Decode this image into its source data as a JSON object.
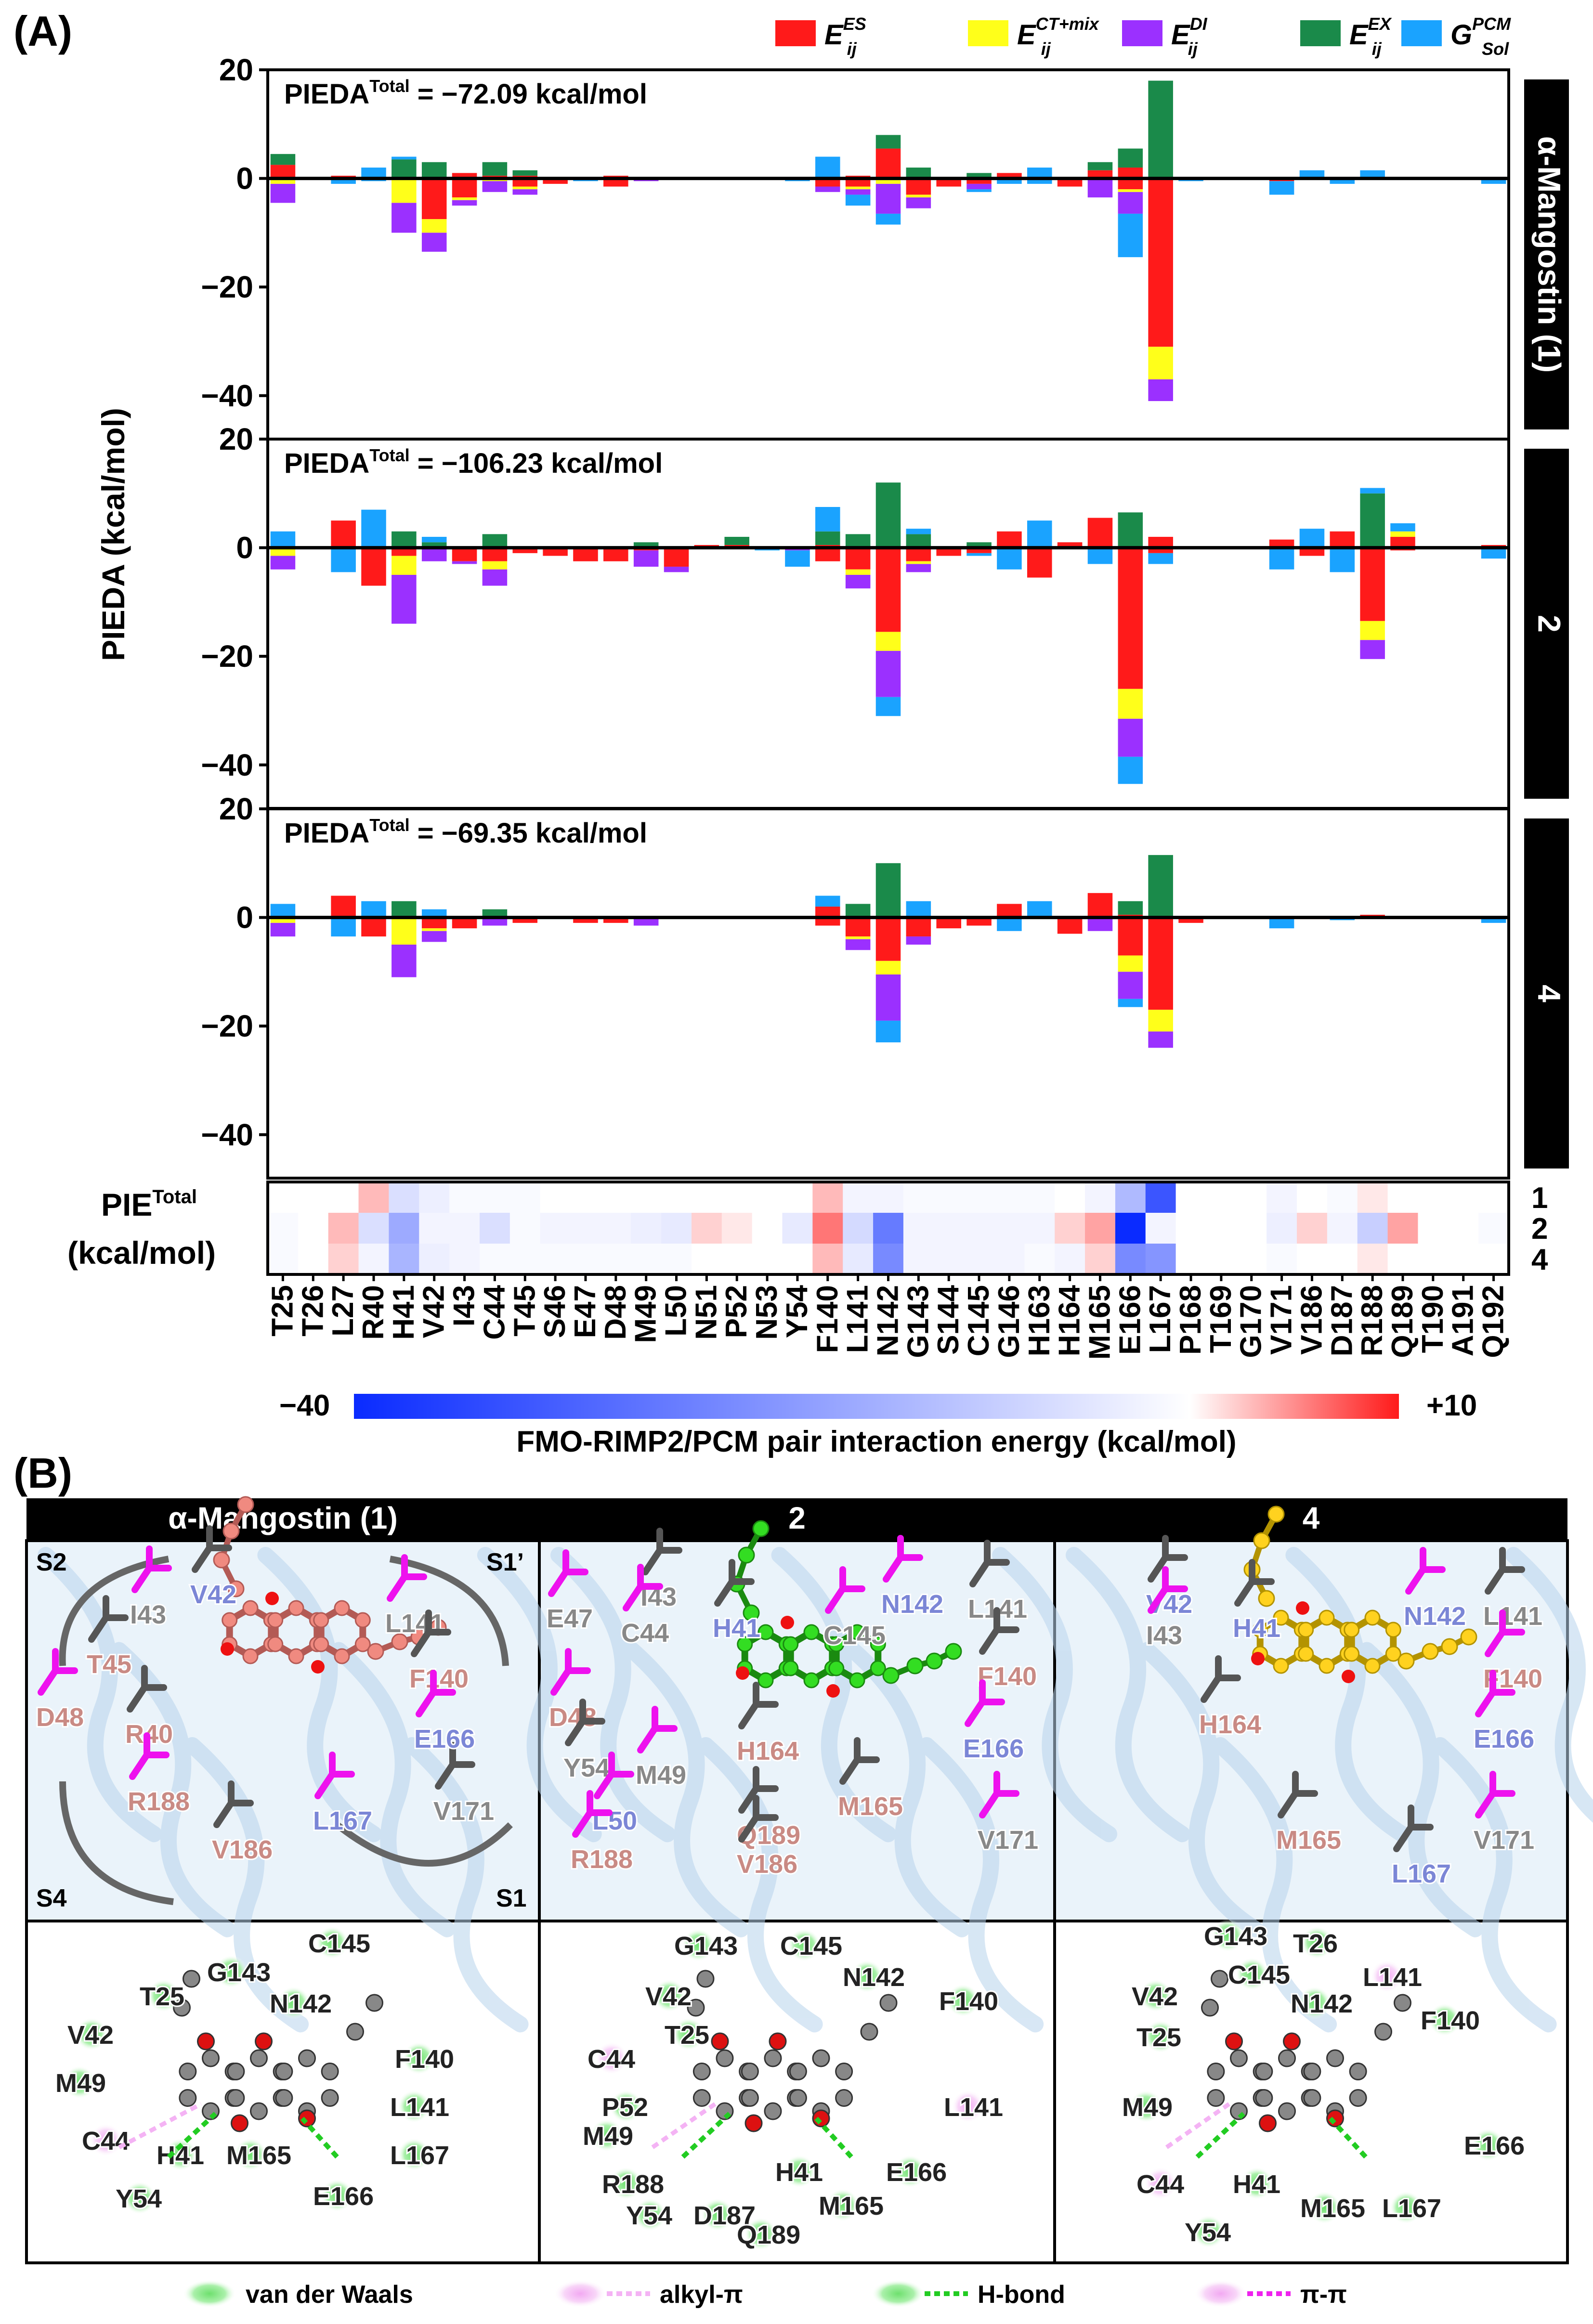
{
  "panel_labels": {
    "a": "(A)",
    "b": "(B)"
  },
  "legend": [
    {
      "key": "es",
      "main": "E",
      "sup": "ES",
      "sub": "ij",
      "color": "#ff1a1a"
    },
    {
      "key": "ct",
      "main": "E",
      "sup": "CT+mix",
      "sub": "ij",
      "color": "#ffff1a"
    },
    {
      "key": "di",
      "main": "E",
      "sup": "DI",
      "sub": "ij",
      "color": "#9b30ff"
    },
    {
      "key": "ex",
      "main": "E",
      "sup": "EX",
      "sub": "ij",
      "color": "#1a8a4a"
    },
    {
      "key": "sol",
      "main": "G",
      "sup": "PCM",
      "sub": "Sol",
      "color": "#1aa3ff"
    }
  ],
  "ylabel": "PIEDA (kcal/mol)",
  "pie_total_label": {
    "line1": "PIE",
    "sup": "Total",
    "line2": "(kcal/mol)"
  },
  "colorbar": {
    "min": "−40",
    "max": "+10",
    "title": "FMO-RIMP2/PCM pair interaction energy (kcal/mol)"
  },
  "chart_data": {
    "type": "bar",
    "stacked": true,
    "residues": [
      "T25",
      "T26",
      "L27",
      "R40",
      "H41",
      "V42",
      "I43",
      "C44",
      "T45",
      "S46",
      "E47",
      "D48",
      "M49",
      "L50",
      "N51",
      "P52",
      "N53",
      "Y54",
      "F140",
      "L141",
      "N142",
      "G143",
      "S144",
      "C145",
      "G146",
      "H163",
      "H164",
      "M165",
      "E166",
      "L167",
      "P168",
      "T169",
      "G170",
      "V171",
      "V186",
      "D187",
      "R188",
      "Q189",
      "T190",
      "A191",
      "Q192"
    ],
    "components": [
      "es",
      "ct",
      "di",
      "ex",
      "sol"
    ],
    "ylim": [
      -48,
      20
    ],
    "yticks": [
      20,
      0,
      -20,
      -40
    ],
    "panels": [
      {
        "side_label": "α-Mangostin (1)",
        "total_prefix": "PIEDA",
        "total_sup": "Total",
        "total_value": "= −72.09 kcal/mol",
        "pos": {
          "T25": {
            "es": 2.5,
            "ex": 2.0
          },
          "L27": {
            "es": 0.5
          },
          "R40": {
            "sol": 2.0
          },
          "H41": {
            "ex": 3.5,
            "sol": 0.5
          },
          "V42": {
            "ex": 3.0
          },
          "I43": {
            "es": 1.0
          },
          "C44": {
            "es": 0.5,
            "ex": 2.5
          },
          "T45": {
            "es": 0.5,
            "ex": 1.0
          },
          "D48": {
            "es": 0.5
          },
          "F140": {
            "sol": 4.0
          },
          "L141": {
            "es": 0.5
          },
          "N142": {
            "es": 5.5,
            "ex": 2.5
          },
          "G143": {
            "ex": 2.0
          },
          "C145": {
            "ex": 1.0
          },
          "G146": {
            "es": 1.0
          },
          "H163": {
            "sol": 2.0
          },
          "M165": {
            "es": 1.5,
            "ex": 1.5
          },
          "E166": {
            "es": 2.0,
            "ex": 3.5
          },
          "L167": {
            "ex": 18.0
          },
          "V186": {
            "sol": 1.5
          },
          "R188": {
            "sol": 1.5
          }
        },
        "neg": {
          "T25": {
            "ct": -1.0,
            "di": -3.5
          },
          "L27": {
            "sol": -1.0
          },
          "R40": {
            "sol": -0.5
          },
          "H41": {
            "ct": -4.5,
            "di": -5.5
          },
          "V42": {
            "es": -7.5,
            "ct": -2.5,
            "di": -3.5
          },
          "I43": {
            "es": -3.5,
            "ct": -0.5,
            "di": -1.0
          },
          "C44": {
            "ct": -0.5,
            "di": -2.0
          },
          "T45": {
            "es": -1.5,
            "ct": -0.5,
            "di": -1.0
          },
          "S46": {
            "es": -1.0
          },
          "E47": {
            "sol": -0.5
          },
          "D48": {
            "es": -1.5
          },
          "M49": {
            "di": -0.5
          },
          "Y54": {
            "sol": -0.5
          },
          "F140": {
            "es": -1.5,
            "di": -1.0
          },
          "L141": {
            "es": -1.5,
            "ct": -0.5,
            "di": -1.0,
            "sol": -2.0
          },
          "N142": {
            "ct": -1.0,
            "di": -5.5,
            "sol": -2.0
          },
          "G143": {
            "es": -3.0,
            "ct": -0.5,
            "di": -2.0
          },
          "S144": {
            "es": -1.5
          },
          "C145": {
            "es": -1.0,
            "di": -1.0,
            "sol": -0.5
          },
          "G146": {
            "sol": -1.0
          },
          "H163": {
            "sol": -1.0
          },
          "H164": {
            "es": -1.5
          },
          "M165": {
            "di": -3.5
          },
          "E166": {
            "es": -2.0,
            "ct": -0.5,
            "di": -4.0,
            "sol": -8.0
          },
          "L167": {
            "es": -31.0,
            "ct": -6.0,
            "di": -4.0
          },
          "P168": {
            "sol": -0.5
          },
          "V171": {
            "es": -0.5,
            "sol": -2.5
          },
          "D187": {
            "sol": -1.0
          },
          "Q192": {
            "sol": -1.0
          }
        }
      },
      {
        "side_label": "2",
        "total_prefix": "PIEDA",
        "total_sup": "Total",
        "total_value": "= −106.23 kcal/mol",
        "pos": {
          "T25": {
            "sol": 3.0
          },
          "L27": {
            "es": 5.0
          },
          "R40": {
            "sol": 7.0
          },
          "H41": {
            "ex": 3.0
          },
          "V42": {
            "ex": 1.0,
            "sol": 1.0
          },
          "C44": {
            "ex": 2.5
          },
          "M49": {
            "ex": 1.0
          },
          "N51": {
            "es": 0.5
          },
          "P52": {
            "es": 0.5,
            "ex": 1.5
          },
          "F140": {
            "es": 0.5,
            "ex": 2.5,
            "sol": 4.5
          },
          "L141": {
            "ex": 2.5
          },
          "N142": {
            "ex": 12.0
          },
          "G143": {
            "ex": 2.5,
            "sol": 1.0
          },
          "C145": {
            "ex": 1.0
          },
          "G146": {
            "es": 3.0
          },
          "H163": {
            "sol": 5.0
          },
          "H164": {
            "es": 1.0
          },
          "M165": {
            "es": 5.5
          },
          "E166": {
            "ex": 6.5
          },
          "L167": {
            "es": 2.0
          },
          "V171": {
            "es": 1.5
          },
          "V186": {
            "sol": 3.5
          },
          "D187": {
            "es": 3.0
          },
          "R188": {
            "ex": 10.0,
            "sol": 1.0
          },
          "Q189": {
            "es": 2.0,
            "ct": 1.0,
            "sol": 1.5
          },
          "Q192": {
            "es": 0.5
          }
        },
        "neg": {
          "T25": {
            "ct": -1.5,
            "di": -2.5
          },
          "L27": {
            "sol": -4.5
          },
          "R40": {
            "es": -7.0
          },
          "H41": {
            "es": -1.5,
            "ct": -3.5,
            "di": -9.0
          },
          "V42": {
            "di": -2.5
          },
          "I43": {
            "es": -2.5,
            "di": -0.5
          },
          "C44": {
            "es": -2.5,
            "ct": -1.5,
            "di": -3.0
          },
          "T45": {
            "es": -1.0
          },
          "S46": {
            "es": -1.5
          },
          "E47": {
            "es": -2.5
          },
          "D48": {
            "es": -2.5
          },
          "M49": {
            "es": -0.5,
            "di": -3.0
          },
          "L50": {
            "es": -3.5,
            "di": -1.0
          },
          "N53": {
            "sol": -0.5
          },
          "Y54": {
            "di": -0.5,
            "sol": -3.0
          },
          "F140": {
            "es": -2.5
          },
          "L141": {
            "es": -4.0,
            "ct": -1.0,
            "di": -2.5
          },
          "N142": {
            "es": -15.5,
            "ct": -3.5,
            "di": -8.5,
            "sol": -3.5
          },
          "G143": {
            "es": -2.5,
            "ct": -0.5,
            "di": -1.5
          },
          "S144": {
            "es": -1.5
          },
          "C145": {
            "es": -1.0,
            "sol": -0.5
          },
          "G146": {
            "sol": -4.0
          },
          "H163": {
            "es": -5.5
          },
          "M165": {
            "sol": -3.0
          },
          "E166": {
            "es": -26.0,
            "ct": -5.5,
            "di": -7.0,
            "sol": -5.0
          },
          "L167": {
            "es": -1.0,
            "sol": -2.0
          },
          "V171": {
            "sol": -4.0
          },
          "V186": {
            "es": -1.5
          },
          "D187": {
            "sol": -4.5
          },
          "R188": {
            "es": -13.5,
            "ct": -3.5,
            "di": -3.5
          },
          "Q189": {
            "es": -0.5
          },
          "Q192": {
            "sol": -2.0
          }
        }
      },
      {
        "side_label": "4",
        "total_prefix": "PIEDA",
        "total_sup": "Total",
        "total_value": "= −69.35 kcal/mol",
        "pos": {
          "T25": {
            "sol": 2.5
          },
          "L27": {
            "es": 4.0
          },
          "R40": {
            "sol": 3.0
          },
          "H41": {
            "ex": 3.0
          },
          "V42": {
            "sol": 1.5
          },
          "C44": {
            "ex": 1.5
          },
          "F140": {
            "es": 2.0,
            "sol": 2.0
          },
          "L141": {
            "ex": 2.5
          },
          "N142": {
            "ex": 10.0
          },
          "G143": {
            "sol": 3.0
          },
          "G146": {
            "es": 2.5
          },
          "H163": {
            "sol": 3.0
          },
          "M165": {
            "es": 4.5
          },
          "E166": {
            "es": 0.5,
            "ex": 2.5
          },
          "L167": {
            "ex": 11.5
          },
          "R188": {
            "es": 0.5
          }
        },
        "neg": {
          "T25": {
            "ct": -1.0,
            "di": -2.5
          },
          "L27": {
            "sol": -3.5
          },
          "R40": {
            "es": -3.5
          },
          "H41": {
            "ct": -5.0,
            "di": -6.0
          },
          "V42": {
            "es": -2.0,
            "ct": -0.5,
            "di": -2.0
          },
          "I43": {
            "es": -2.0
          },
          "C44": {
            "di": -1.5
          },
          "T45": {
            "es": -1.0
          },
          "E47": {
            "es": -1.0
          },
          "D48": {
            "es": -1.0
          },
          "M49": {
            "di": -1.5
          },
          "F140": {
            "es": -1.5
          },
          "L141": {
            "es": -3.5,
            "ct": -0.5,
            "di": -2.0
          },
          "N142": {
            "es": -8.0,
            "ct": -2.5,
            "di": -8.5,
            "sol": -4.0
          },
          "G143": {
            "es": -3.5,
            "di": -1.5
          },
          "S144": {
            "es": -2.0
          },
          "C145": {
            "es": -1.5
          },
          "G146": {
            "sol": -2.5
          },
          "H164": {
            "es": -3.0
          },
          "M165": {
            "di": -2.5
          },
          "E166": {
            "es": -7.0,
            "ct": -3.0,
            "di": -5.0,
            "sol": -1.5
          },
          "L167": {
            "es": -17.0,
            "ct": -4.0,
            "di": -3.0
          },
          "P168": {
            "es": -1.0
          },
          "V171": {
            "sol": -2.0
          },
          "D187": {
            "sol": -0.5
          },
          "Q192": {
            "sol": -1.0
          }
        }
      }
    ],
    "heatmap": {
      "row_labels": [
        "1",
        "2",
        "4"
      ],
      "vmin": -40,
      "vmax": 10,
      "rows": [
        [
          0,
          0,
          0,
          3,
          -6,
          -3,
          -1,
          -1,
          -1,
          0,
          0,
          0,
          0,
          0,
          0,
          0,
          0,
          0,
          3,
          -2,
          -2,
          -1,
          -1,
          -1,
          -1,
          -1,
          0,
          -2,
          -13,
          -32,
          0,
          0,
          0,
          -2,
          0,
          -1,
          1,
          0,
          0,
          0,
          0
        ],
        [
          -1,
          0,
          3,
          -6,
          -16,
          -2,
          -2,
          -6,
          -1,
          -2,
          -2,
          -2,
          -3,
          -4,
          2,
          1,
          0,
          -4,
          6,
          -7,
          -25,
          -2,
          -2,
          -2,
          -2,
          -2,
          2,
          4,
          -40,
          -2,
          0,
          0,
          0,
          -3,
          2,
          -2,
          -9,
          4,
          0,
          0,
          -1
        ],
        [
          -1,
          0,
          2,
          -2,
          -14,
          -3,
          -2,
          -1,
          -1,
          -1,
          -1,
          -1,
          -1,
          -1,
          0,
          0,
          0,
          0,
          3,
          -4,
          -22,
          -2,
          -2,
          -2,
          -2,
          -1,
          -2,
          2,
          -22,
          -20,
          0,
          0,
          0,
          -1,
          0,
          0,
          1,
          0,
          0,
          0,
          0
        ]
      ]
    }
  },
  "panel_b": {
    "headers": [
      "α-Mangostin (1)",
      "2",
      "4"
    ],
    "pocket_labels": {
      "s2": "S2",
      "s1p": "S1’",
      "s4": "S4",
      "s1": "S1"
    },
    "views": [
      {
        "labels": [
          "V42",
          "I43",
          "T45",
          "D48",
          "R40",
          "R188",
          "V186",
          "L167",
          "V171",
          "L141",
          "F140",
          "E166"
        ]
      },
      {
        "labels": [
          "E47",
          "I43",
          "C44",
          "H41",
          "N142",
          "L141",
          "C145",
          "F140",
          "D48",
          "Y54",
          "M49",
          "H164",
          "E166",
          "M165",
          "L50",
          "Q189",
          "R188",
          "V186",
          "V171"
        ]
      },
      {
        "labels": [
          "V42",
          "I43",
          "H41",
          "N142",
          "L141",
          "F140",
          "H164",
          "E166",
          "M165",
          "V171",
          "L167"
        ]
      }
    ],
    "interaction_maps": [
      {
        "labels": [
          "C145",
          "G143",
          "T25",
          "N142",
          "V42",
          "M49",
          "F140",
          "L141",
          "C44",
          "H41",
          "M165",
          "L167",
          "Y54",
          "E166"
        ]
      },
      {
        "labels": [
          "G143",
          "C145",
          "N142",
          "V42",
          "F140",
          "T25",
          "C44",
          "L141",
          "P52",
          "M49",
          "H41",
          "E166",
          "R188",
          "M165",
          "Y54",
          "D187",
          "Q189"
        ]
      },
      {
        "labels": [
          "G143",
          "T26",
          "C145",
          "L141",
          "V42",
          "N142",
          "F140",
          "T25",
          "M49",
          "E166",
          "C44",
          "H41",
          "M165",
          "L167",
          "Y54"
        ]
      }
    ],
    "legend": [
      {
        "key": "vdw",
        "text": "van der Waals",
        "color": "#7fe07f"
      },
      {
        "key": "alkyl",
        "text": "alkyl-π",
        "color": "#f4b3f4"
      },
      {
        "key": "hbond",
        "text": "H-bond",
        "color": "#22cc22"
      },
      {
        "key": "pipi",
        "text": "π-π",
        "color": "#ee22ee"
      }
    ]
  }
}
